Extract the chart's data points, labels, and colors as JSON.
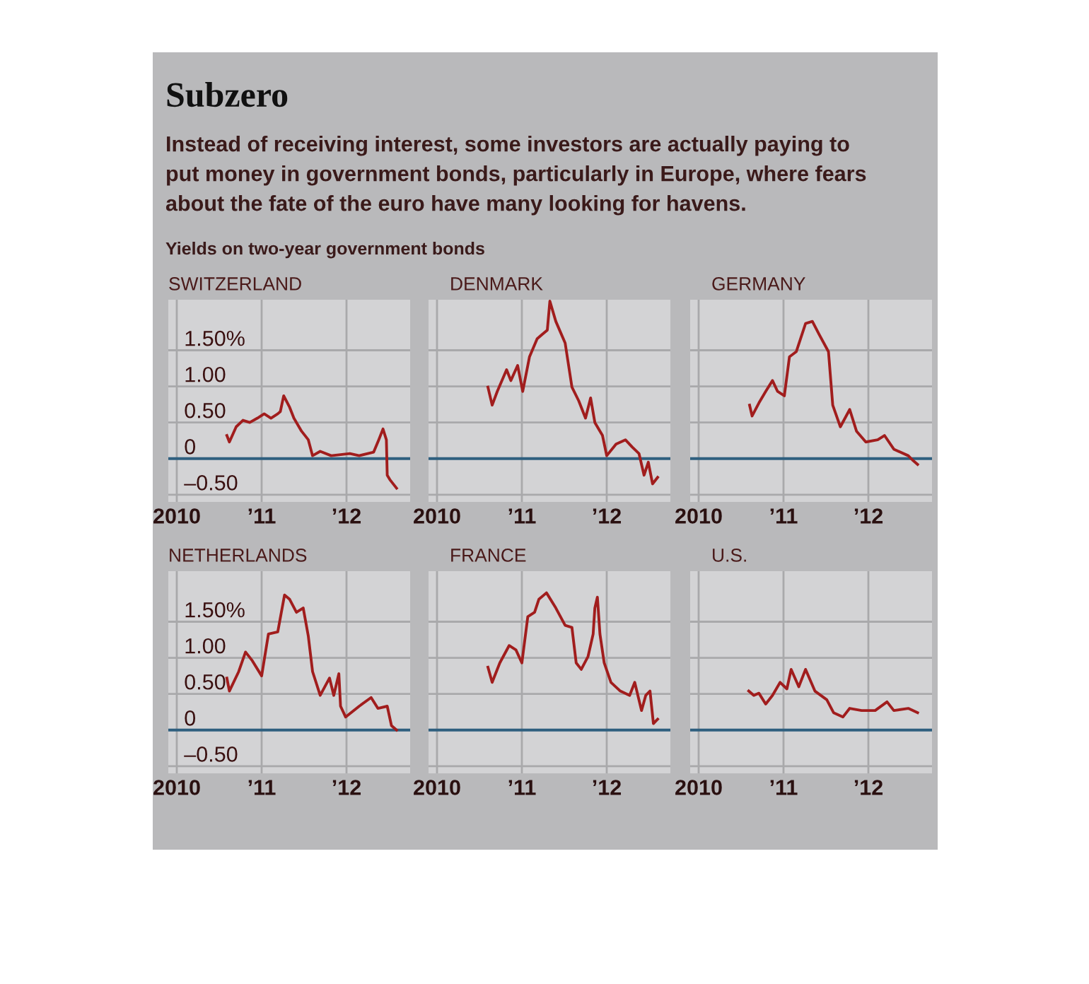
{
  "chart_data": [
    {
      "type": "line",
      "title": "SWITZERLAND",
      "annotations": [
        "Subzero",
        "Instead of receiving interest, some investors are actually paying to",
        "put money in government bonds, particularly in Europe, where fears",
        "about the fate of the euro have many looking for havens.",
        "Yields on two-year government bonds"
      ],
      "series": [
        {
          "color": "#a11d1d",
          "x": [
            2010.59,
            2010.62,
            2010.7,
            2010.78,
            2010.86,
            2010.95,
            2011.03,
            2011.11,
            2011.19,
            2011.22,
            2011.26,
            2011.33,
            2011.38,
            2011.47,
            2011.55,
            2011.6,
            2011.69,
            2011.82,
            2012.04,
            2012.15,
            2012.32,
            2012.38,
            2012.43,
            2012.47,
            2012.48,
            2012.51,
            2012.59
          ],
          "values": [
            0.32,
            0.23,
            0.44,
            0.53,
            0.5,
            0.56,
            0.62,
            0.56,
            0.62,
            0.65,
            0.87,
            0.71,
            0.56,
            0.38,
            0.26,
            0.04,
            0.1,
            0.04,
            0.07,
            0.04,
            0.09,
            0.26,
            0.41,
            0.26,
            -0.23,
            -0.29,
            -0.41
          ]
        }
      ],
      "xlim": [
        2009.9,
        2012.75
      ],
      "ylim": [
        -0.6,
        2.2
      ],
      "xticks": [
        {
          "value": 2010,
          "label": "2010"
        },
        {
          "value": 2011,
          "label": "’11"
        },
        {
          "value": 2012,
          "label": "’12"
        }
      ],
      "yticks": [
        {
          "value": -0.5,
          "label": "–0.50"
        },
        0,
        {
          "value": 0.5,
          "label": "0.50"
        },
        {
          "value": 1,
          "label": "1.00"
        },
        {
          "value": 1.5,
          "label": "1.50%"
        }
      ],
      "grid": true,
      "ref_lines": [
        {
          "axis": "y",
          "value": 0,
          "color": "#2f5f7f"
        }
      ]
    },
    {
      "type": "line",
      "title": "DENMARK",
      "series": [
        {
          "color": "#a11d1d",
          "x": [
            2010.6,
            2010.65,
            2010.71,
            2010.82,
            2010.87,
            2010.95,
            2011.01,
            2011.09,
            2011.18,
            2011.24,
            2011.3,
            2011.33,
            2011.4,
            2011.51,
            2011.59,
            2011.67,
            2011.75,
            2011.81,
            2011.86,
            2011.95,
            2012.0,
            2012.11,
            2012.22,
            2012.3,
            2012.38,
            2012.44,
            2012.49,
            2012.54,
            2012.6
          ],
          "values": [
            0.99,
            0.74,
            0.93,
            1.23,
            1.08,
            1.29,
            0.93,
            1.41,
            1.66,
            1.72,
            1.78,
            2.18,
            1.9,
            1.6,
            0.99,
            0.8,
            0.56,
            0.84,
            0.5,
            0.32,
            0.04,
            0.2,
            0.26,
            0.16,
            0.07,
            -0.23,
            -0.05,
            -0.35,
            -0.26
          ]
        }
      ],
      "xlim": [
        2009.9,
        2012.75
      ],
      "ylim": [
        -0.6,
        2.2
      ],
      "xticks": [
        {
          "value": 2010,
          "label": "2010"
        },
        {
          "value": 2011,
          "label": "’11"
        },
        {
          "value": 2012,
          "label": "’12"
        }
      ],
      "yticks": [
        -0.5,
        0,
        0.5,
        1,
        1.5
      ],
      "grid": true,
      "tick_labels": "x",
      "ref_lines": [
        {
          "axis": "y",
          "value": 0,
          "color": "#2f5f7f"
        }
      ]
    },
    {
      "type": "line",
      "title": "GERMANY",
      "series": [
        {
          "color": "#a11d1d",
          "x": [
            2010.6,
            2010.63,
            2010.71,
            2010.79,
            2010.87,
            2010.93,
            2011.01,
            2011.07,
            2011.15,
            2011.26,
            2011.34,
            2011.42,
            2011.53,
            2011.58,
            2011.67,
            2011.78,
            2011.86,
            2011.97,
            2012.11,
            2012.19,
            2012.3,
            2012.47,
            2012.52,
            2012.58
          ],
          "values": [
            0.74,
            0.59,
            0.77,
            0.93,
            1.08,
            0.93,
            0.87,
            1.41,
            1.48,
            1.87,
            1.9,
            1.72,
            1.48,
            0.74,
            0.44,
            0.68,
            0.38,
            0.23,
            0.26,
            0.32,
            0.13,
            0.04,
            -0.02,
            -0.08
          ]
        }
      ],
      "xlim": [
        2009.9,
        2012.75
      ],
      "ylim": [
        -0.6,
        2.2
      ],
      "xticks": [
        {
          "value": 2010,
          "label": "2010"
        },
        {
          "value": 2011,
          "label": "’11"
        },
        {
          "value": 2012,
          "label": "’12"
        }
      ],
      "yticks": [
        -0.5,
        0,
        0.5,
        1,
        1.5
      ],
      "grid": true,
      "tick_labels": "x",
      "ref_lines": [
        {
          "axis": "y",
          "value": 0,
          "color": "#2f5f7f"
        }
      ]
    },
    {
      "type": "line",
      "title": "NETHERLANDS",
      "series": [
        {
          "color": "#a11d1d",
          "x": [
            2010.59,
            2010.62,
            2010.73,
            2010.81,
            2010.89,
            2011.0,
            2011.08,
            2011.19,
            2011.27,
            2011.33,
            2011.41,
            2011.49,
            2011.55,
            2011.6,
            2011.69,
            2011.8,
            2011.85,
            2011.91,
            2011.93,
            2011.99,
            2012.15,
            2012.29,
            2012.37,
            2012.48,
            2012.53,
            2012.59
          ],
          "values": [
            0.72,
            0.54,
            0.81,
            1.08,
            0.96,
            0.75,
            1.33,
            1.36,
            1.87,
            1.81,
            1.63,
            1.69,
            1.3,
            0.81,
            0.48,
            0.72,
            0.48,
            0.78,
            0.33,
            0.18,
            0.33,
            0.45,
            0.3,
            0.33,
            0.06,
            0.0
          ]
        }
      ],
      "xlim": [
        2009.9,
        2012.75
      ],
      "ylim": [
        -0.6,
        2.2
      ],
      "xticks": [
        {
          "value": 2010,
          "label": "2010"
        },
        {
          "value": 2011,
          "label": "’11"
        },
        {
          "value": 2012,
          "label": "’12"
        }
      ],
      "yticks": [
        {
          "value": -0.5,
          "label": "–0.50"
        },
        0,
        {
          "value": 0.5,
          "label": "0.50"
        },
        {
          "value": 1,
          "label": "1.00"
        },
        {
          "value": 1.5,
          "label": "1.50%"
        }
      ],
      "grid": true,
      "ref_lines": [
        {
          "axis": "y",
          "value": 0,
          "color": "#2f5f7f"
        }
      ]
    },
    {
      "type": "line",
      "title": "FRANCE",
      "series": [
        {
          "color": "#a11d1d",
          "x": [
            2010.6,
            2010.65,
            2010.74,
            2010.85,
            2010.93,
            2011.0,
            2011.07,
            2011.15,
            2011.2,
            2011.29,
            2011.4,
            2011.51,
            2011.59,
            2011.64,
            2011.7,
            2011.78,
            2011.84,
            2011.86,
            2011.89,
            2011.92,
            2011.97,
            2012.05,
            2012.16,
            2012.27,
            2012.33,
            2012.41,
            2012.46,
            2012.51,
            2012.55,
            2012.6
          ],
          "values": [
            0.87,
            0.66,
            0.93,
            1.17,
            1.11,
            0.93,
            1.57,
            1.63,
            1.81,
            1.9,
            1.69,
            1.45,
            1.42,
            0.93,
            0.84,
            1.02,
            1.33,
            1.69,
            1.84,
            1.33,
            0.93,
            0.66,
            0.54,
            0.48,
            0.66,
            0.27,
            0.48,
            0.54,
            0.09,
            0.15
          ]
        }
      ],
      "xlim": [
        2009.9,
        2012.75
      ],
      "ylim": [
        -0.6,
        2.2
      ],
      "xticks": [
        {
          "value": 2010,
          "label": "2010"
        },
        {
          "value": 2011,
          "label": "’11"
        },
        {
          "value": 2012,
          "label": "’12"
        }
      ],
      "yticks": [
        -0.5,
        0,
        0.5,
        1,
        1.5
      ],
      "grid": true,
      "tick_labels": "x",
      "ref_lines": [
        {
          "axis": "y",
          "value": 0,
          "color": "#2f5f7f"
        }
      ]
    },
    {
      "type": "line",
      "title": "U.S.",
      "series": [
        {
          "color": "#a11d1d",
          "x": [
            2010.59,
            2010.65,
            2010.71,
            2010.79,
            2010.87,
            2010.96,
            2011.04,
            2011.09,
            2011.18,
            2011.26,
            2011.37,
            2011.51,
            2011.59,
            2011.7,
            2011.78,
            2011.92,
            2012.08,
            2012.22,
            2012.3,
            2012.47,
            2012.58
          ],
          "values": [
            0.54,
            0.48,
            0.51,
            0.36,
            0.48,
            0.66,
            0.57,
            0.84,
            0.6,
            0.84,
            0.54,
            0.42,
            0.24,
            0.18,
            0.3,
            0.27,
            0.27,
            0.39,
            0.27,
            0.3,
            0.24
          ]
        }
      ],
      "xlim": [
        2009.9,
        2012.75
      ],
      "ylim": [
        -0.6,
        2.2
      ],
      "xticks": [
        {
          "value": 2010,
          "label": "2010"
        },
        {
          "value": 2011,
          "label": "’11"
        },
        {
          "value": 2012,
          "label": "’12"
        }
      ],
      "yticks": [
        -0.5,
        0,
        0.5,
        1,
        1.5
      ],
      "grid": true,
      "tick_labels": "x",
      "ref_lines": [
        {
          "axis": "y",
          "value": 0,
          "color": "#2f5f7f"
        }
      ]
    }
  ]
}
